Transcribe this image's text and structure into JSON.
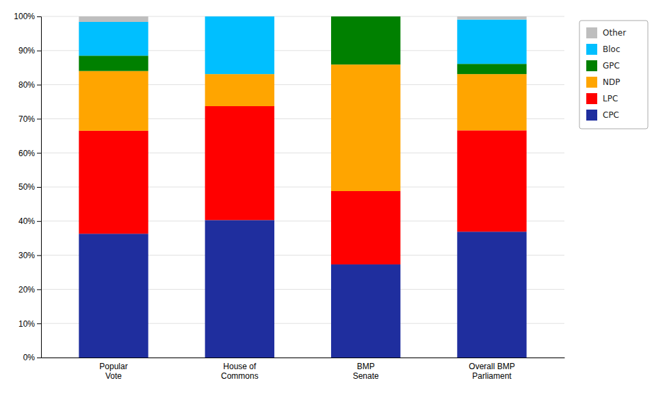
{
  "chart_data": {
    "type": "bar",
    "stacked": true,
    "categories": [
      "Popular\nVote",
      "House of\nCommons",
      "BMP\nSenate",
      "Overall BMP\nParliament"
    ],
    "series": [
      {
        "name": "CPC",
        "color": "#1F2E9E",
        "values": [
          36.3,
          40.3,
          27.3,
          36.9
        ]
      },
      {
        "name": "LPC",
        "color": "#FF0000",
        "values": [
          30.2,
          33.4,
          21.5,
          29.7
        ]
      },
      {
        "name": "NDP",
        "color": "#FFA500",
        "values": [
          17.5,
          9.4,
          37.1,
          16.5
        ]
      },
      {
        "name": "GPC",
        "color": "#008000",
        "values": [
          4.5,
          0.0,
          14.1,
          3.0
        ]
      },
      {
        "name": "Bloc",
        "color": "#00BFFF",
        "values": [
          9.9,
          16.9,
          0.0,
          13.0
        ]
      },
      {
        "name": "Other",
        "color": "#BEBEBE",
        "values": [
          1.6,
          0.0,
          0.0,
          0.9
        ]
      }
    ],
    "ylim": [
      0,
      100
    ],
    "yticks": [
      {
        "value": 0,
        "label": "0%"
      },
      {
        "value": 10,
        "label": "10%"
      },
      {
        "value": 20,
        "label": "20%"
      },
      {
        "value": 30,
        "label": "30%"
      },
      {
        "value": 40,
        "label": "40%"
      },
      {
        "value": 50,
        "label": "50%"
      },
      {
        "value": 60,
        "label": "60%"
      },
      {
        "value": 70,
        "label": "70%"
      },
      {
        "value": 80,
        "label": "80%"
      },
      {
        "value": 90,
        "label": "90%"
      },
      {
        "value": 100,
        "label": "100%"
      }
    ],
    "grid": true,
    "legend": "right"
  }
}
